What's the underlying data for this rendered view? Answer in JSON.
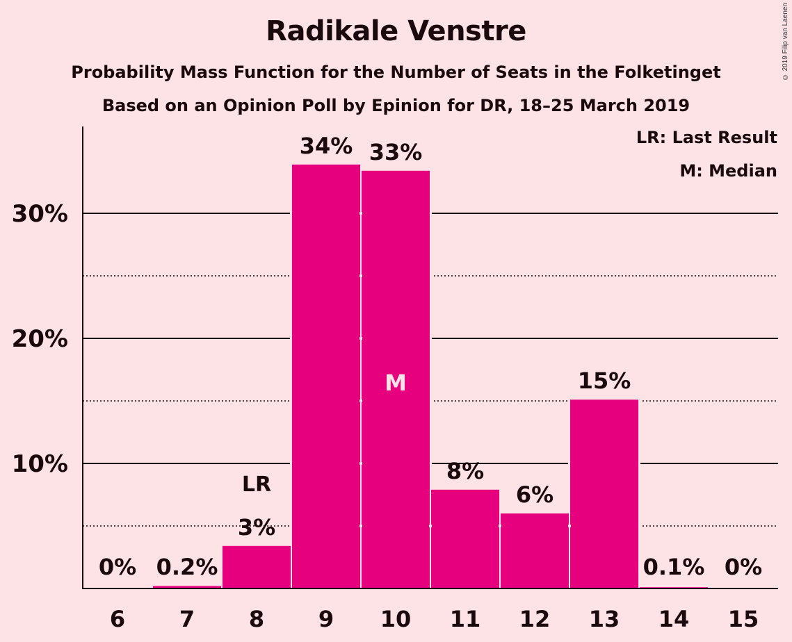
{
  "chart_data": {
    "type": "bar",
    "title": "Radikale Venstre",
    "subtitle": "Probability Mass Function for the Number of Seats in the Folketinget",
    "subtitle2": "Based on an Opinion Poll by Epinion for DR, 18–25 March 2019",
    "copyright": "© 2019 Filip van Laenen",
    "categories": [
      "6",
      "7",
      "8",
      "9",
      "10",
      "11",
      "12",
      "13",
      "14",
      "15"
    ],
    "values": [
      0,
      0.2,
      3.4,
      33.9,
      33.4,
      7.9,
      6.0,
      15.1,
      0.1,
      0
    ],
    "data_labels": [
      "0%",
      "0.2%",
      "3%",
      "34%",
      "33%",
      "8%",
      "6%",
      "15%",
      "0.1%",
      "0%"
    ],
    "ylim": [
      0,
      37
    ],
    "yticks": [
      10,
      20,
      30
    ],
    "ytick_labels": [
      "10%",
      "20%",
      "30%"
    ],
    "minor_gridlines": [
      5,
      15,
      25
    ],
    "last_result": {
      "category": "8",
      "label": "LR"
    },
    "median": {
      "category": "10",
      "label": "M"
    },
    "legend": [
      "LR: Last Result",
      "M: Median"
    ],
    "legend_position": "top-right",
    "bar_color": "#E6007E",
    "background_color": "#FDE2E6"
  }
}
